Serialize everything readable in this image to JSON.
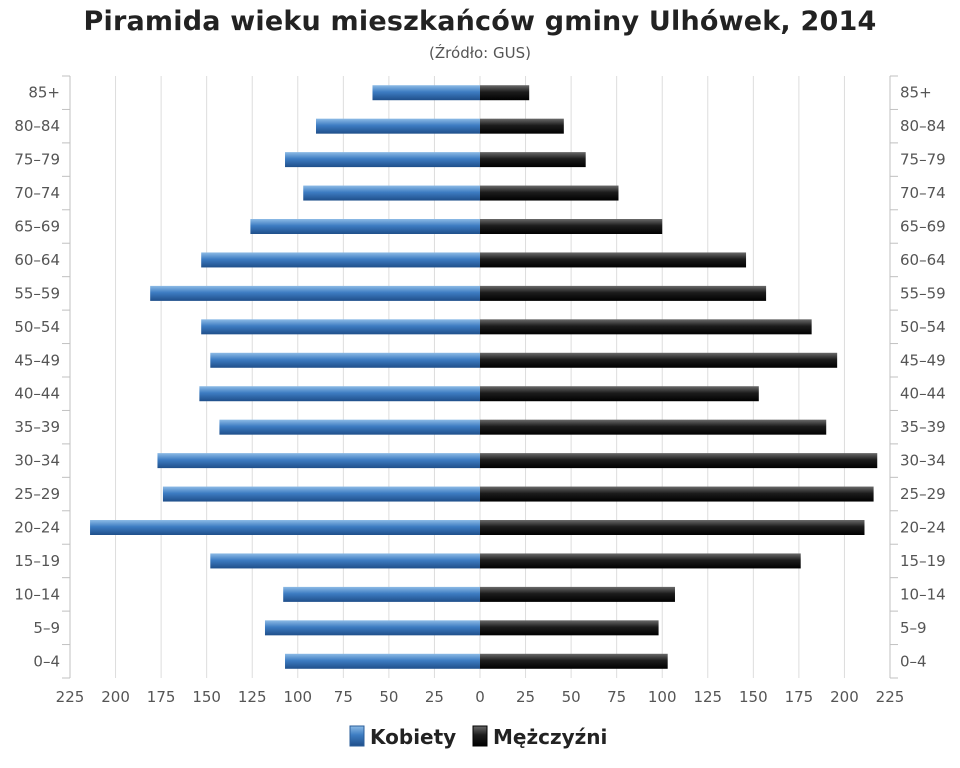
{
  "chart_data": {
    "type": "bar",
    "title": "Piramida wieku mieszkańców gminy Ulhówek, 2014",
    "subtitle": "(Źródło: GUS)",
    "categories": [
      "85+",
      "80–84",
      "75–79",
      "70–74",
      "65–69",
      "60–64",
      "55–59",
      "50–54",
      "45–49",
      "40–44",
      "35–39",
      "30–34",
      "25–29",
      "20–24",
      "15–19",
      "10–14",
      "5–9",
      "0–4"
    ],
    "series": [
      {
        "name": "Kobiety",
        "color": "#3d7cc2",
        "values": [
          59,
          90,
          107,
          97,
          126,
          153,
          181,
          153,
          148,
          154,
          143,
          177,
          174,
          214,
          148,
          108,
          118,
          107
        ]
      },
      {
        "name": "Mężczyźni",
        "color": "#1a1a1a",
        "values": [
          27,
          46,
          58,
          76,
          100,
          146,
          157,
          182,
          196,
          153,
          190,
          218,
          216,
          211,
          176,
          107,
          98,
          103
        ]
      }
    ],
    "xticks": [
      "225",
      "200",
      "175",
      "150",
      "125",
      "100",
      "75",
      "50",
      "25",
      "0",
      "25",
      "50",
      "75",
      "100",
      "125",
      "150",
      "175",
      "200",
      "225"
    ],
    "xlim": [
      -225,
      225
    ],
    "grid": true,
    "legend_position": "bottom"
  }
}
